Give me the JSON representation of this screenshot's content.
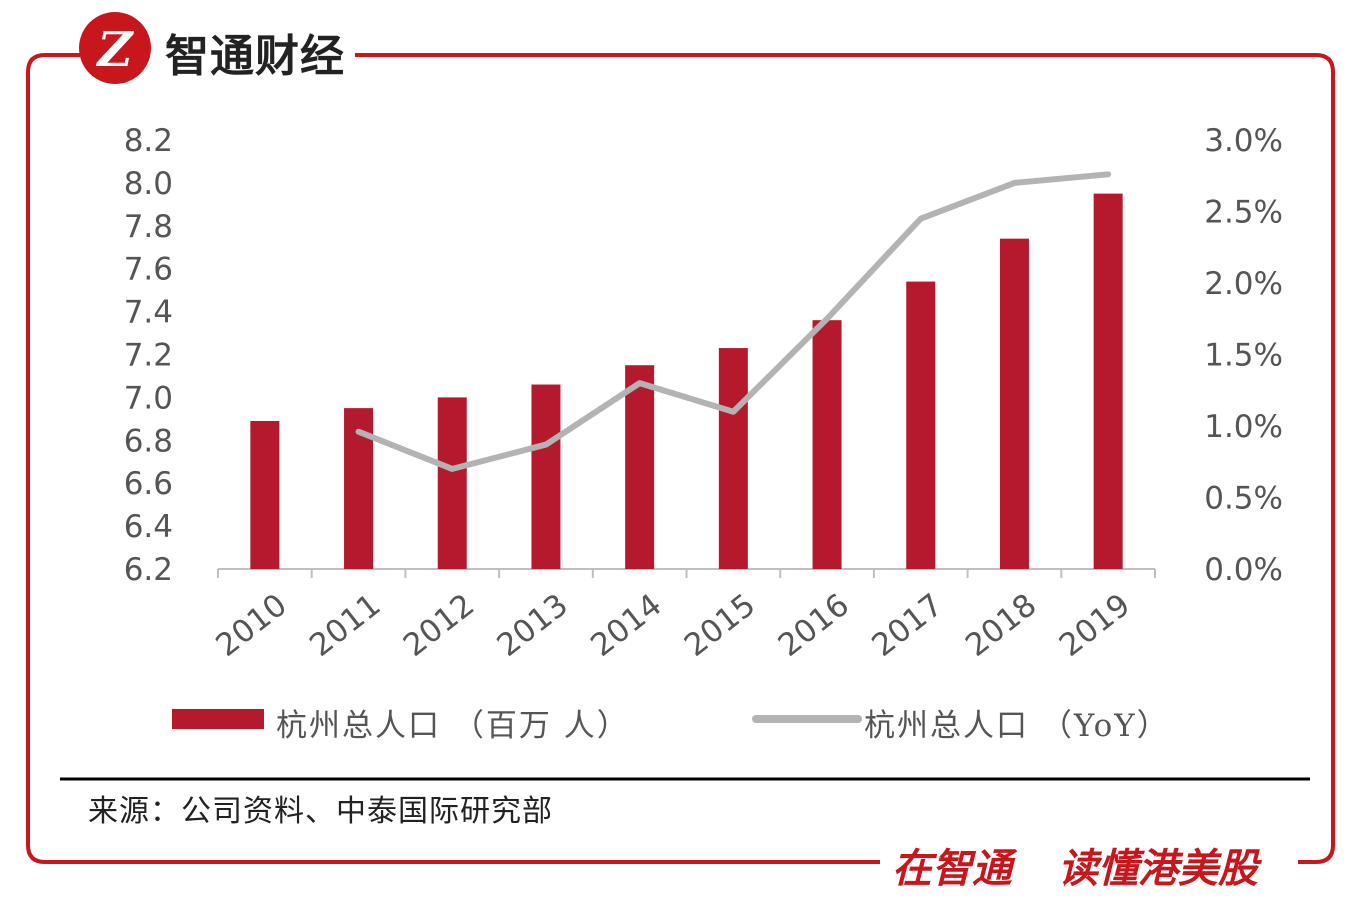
{
  "brand": {
    "name": "智通财经",
    "logo_glyph": "Z",
    "accent": "#c8161d",
    "slogan_part1": "在智通",
    "slogan_part2": "读懂港美股"
  },
  "chart_data": {
    "type": "bar",
    "categories": [
      "2010",
      "2011",
      "2012",
      "2013",
      "2014",
      "2015",
      "2016",
      "2017",
      "2018",
      "2019"
    ],
    "series": [
      {
        "name": "杭州总人口 （百万 人）",
        "kind": "bar",
        "axis": "left",
        "color": "#b5192e",
        "values": [
          6.89,
          6.95,
          7.0,
          7.06,
          7.15,
          7.23,
          7.36,
          7.54,
          7.74,
          7.95
        ]
      },
      {
        "name": "杭州总人口 （YoY）",
        "kind": "line",
        "axis": "right",
        "color": "#b3b3b3",
        "values": [
          null,
          0.96,
          0.7,
          0.87,
          1.3,
          1.1,
          1.75,
          2.45,
          2.7,
          2.76
        ]
      }
    ],
    "y_left": {
      "min": 6.2,
      "max": 8.2,
      "ticks": [
        "6.2",
        "6.4",
        "6.6",
        "6.8",
        "7.0",
        "7.2",
        "7.4",
        "7.6",
        "7.8",
        "8.0",
        "8.2"
      ]
    },
    "y_right": {
      "min": 0.0,
      "max": 3.0,
      "ticks": [
        "0.0%",
        "0.5%",
        "1.0%",
        "1.5%",
        "2.0%",
        "2.5%",
        "3.0%"
      ]
    },
    "legend_position": "bottom",
    "grid": false
  },
  "source": "来源：公司资料、中泰国际研究部"
}
